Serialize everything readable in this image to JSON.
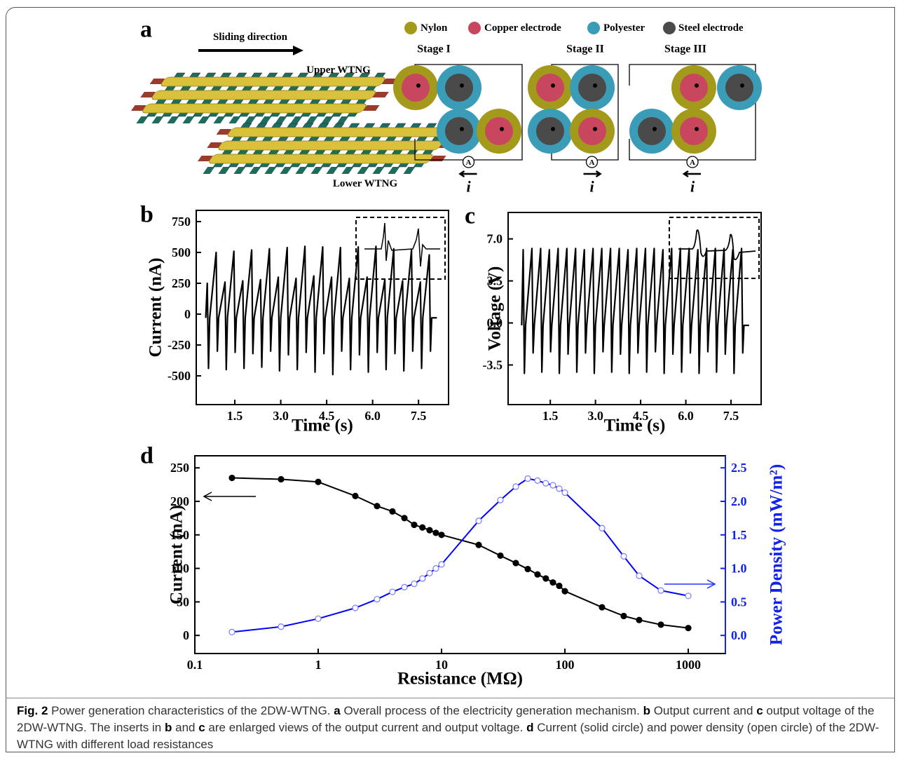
{
  "panel_a": {
    "label": "a",
    "sliding_direction": "Sliding direction",
    "upper_label": "Upper WTNG",
    "lower_label": "Lower WTNG",
    "legend": [
      "Nylon",
      "Copper electrode",
      "Polyester",
      "Steel electrode"
    ],
    "stages": [
      "Stage I",
      "Stage II",
      "Stage III"
    ],
    "ammeter": "A",
    "current_symbol": "i"
  },
  "chart_data": [
    {
      "type": "line",
      "label": "b",
      "y_label": "Current (nA)",
      "x_label": "Time (s)",
      "color": "#000000",
      "x": [
        0.55,
        0.6,
        0.64,
        0.68,
        0.89,
        0.93,
        0.97,
        1.18,
        1.22,
        1.26,
        1.47,
        1.51,
        1.55,
        1.76,
        1.8,
        1.84,
        2.05,
        2.09,
        2.13,
        2.34,
        2.38,
        2.42,
        2.63,
        2.67,
        2.71,
        2.92,
        2.96,
        3,
        3.21,
        3.25,
        3.29,
        3.5,
        3.54,
        3.58,
        3.79,
        3.83,
        3.87,
        4.08,
        4.12,
        4.16,
        4.37,
        4.41,
        4.45,
        4.66,
        4.7,
        4.74,
        4.95,
        4.99,
        5.03,
        5.24,
        5.28,
        5.32,
        5.53,
        5.57,
        5.61,
        5.82,
        5.86,
        5.9,
        6.11,
        6.15,
        6.19,
        6.4,
        6.44,
        6.48,
        6.69,
        6.73,
        6.77,
        6.98,
        7.02,
        7.06,
        7.27,
        7.31,
        7.35,
        7.56,
        7.6,
        7.64,
        7.85,
        7.89,
        7.93,
        8.1
      ],
      "values": [
        -30,
        250,
        -440,
        -30,
        500,
        -300,
        -30,
        260,
        -450,
        -30,
        510,
        -310,
        -30,
        270,
        -440,
        -30,
        520,
        -320,
        -30,
        280,
        -430,
        -30,
        530,
        -300,
        -30,
        300,
        -460,
        -30,
        540,
        -330,
        -30,
        290,
        -450,
        -30,
        550,
        -310,
        -30,
        310,
        -470,
        -30,
        545,
        -320,
        -30,
        300,
        -490,
        -30,
        540,
        -300,
        -30,
        290,
        -450,
        -30,
        545,
        -330,
        -30,
        300,
        -470,
        -30,
        550,
        -310,
        -30,
        280,
        -450,
        -30,
        530,
        -320,
        -30,
        270,
        -460,
        -30,
        520,
        -300,
        -30,
        260,
        -440,
        -30,
        480,
        -300,
        -30,
        -30
      ],
      "xlim": [
        0.24,
        8.48
      ],
      "ylim": [
        -733,
        841
      ],
      "xticks": [
        1.5,
        {
          "value": 3,
          "label": "3.0"
        },
        4.5,
        {
          "value": 6,
          "label": "6.0"
        },
        7.5
      ],
      "yticks": [
        -500,
        -250,
        0,
        250,
        500,
        750
      ],
      "grid": false
    },
    {
      "type": "line",
      "label": "c",
      "y_label": "Voltage (V)",
      "x_label": "Time (s)",
      "color": "#000000",
      "x": [
        0.55,
        0.6,
        0.64,
        0.68,
        0.89,
        0.93,
        0.97,
        1.18,
        1.22,
        1.26,
        1.47,
        1.51,
        1.55,
        1.76,
        1.8,
        1.84,
        2.05,
        2.09,
        2.13,
        2.34,
        2.38,
        2.42,
        2.63,
        2.67,
        2.71,
        2.92,
        2.96,
        3,
        3.21,
        3.25,
        3.29,
        3.5,
        3.54,
        3.58,
        3.79,
        3.83,
        3.87,
        4.08,
        4.12,
        4.16,
        4.37,
        4.41,
        4.45,
        4.66,
        4.7,
        4.74,
        4.95,
        4.99,
        5.03,
        5.24,
        5.28,
        5.32,
        5.53,
        5.57,
        5.61,
        5.82,
        5.86,
        5.9,
        6.11,
        6.15,
        6.19,
        6.4,
        6.44,
        6.48,
        6.69,
        6.73,
        6.77,
        6.98,
        7.02,
        7.06,
        7.27,
        7.31,
        7.35,
        7.56,
        7.6,
        7.64,
        7.85,
        7.89,
        7.93,
        8.1
      ],
      "values": [
        -0.2,
        6.1,
        -4.2,
        -0.2,
        6.2,
        -2.5,
        -0.2,
        6.2,
        -4.1,
        -0.2,
        6.1,
        -2.4,
        -0.2,
        6.2,
        -4.2,
        -0.2,
        6.2,
        -2.6,
        -0.2,
        6.2,
        -4.1,
        -0.2,
        6.1,
        -2.5,
        -0.2,
        6.2,
        -4.2,
        -0.2,
        6.2,
        -2.4,
        -0.2,
        6.2,
        -4.1,
        -0.2,
        6.2,
        -2.6,
        -0.2,
        6.1,
        -4.2,
        -0.2,
        6.2,
        -2.5,
        -0.2,
        6.2,
        -4.1,
        -0.2,
        6.2,
        -2.4,
        -0.2,
        6.1,
        -4.2,
        -0.2,
        6.2,
        -2.6,
        -0.2,
        6.2,
        -4.1,
        -0.2,
        6.2,
        -2.5,
        -0.2,
        6.1,
        -4.2,
        -0.2,
        6.2,
        -2.4,
        -0.2,
        6.2,
        -4.1,
        -0.2,
        6.2,
        -2.6,
        -0.2,
        6.1,
        -4.2,
        -0.2,
        6.2,
        -2.5,
        -0.2,
        -0.2
      ],
      "xlim": [
        0.1,
        8.5
      ],
      "ylim": [
        -6.8,
        9.2
      ],
      "xticks": [
        1.5,
        {
          "value": 3,
          "label": "3.0"
        },
        4.5,
        {
          "value": 6,
          "label": "6.0"
        },
        7.5
      ],
      "yticks": [
        -3.5,
        {
          "value": 0,
          "label": "0.0"
        },
        3.5,
        {
          "value": 7,
          "label": "7.0"
        }
      ],
      "grid": false
    },
    {
      "type": "line",
      "label": "d",
      "y_label": "Current (nA)",
      "y2_label": "Power Density (mW/m²)",
      "x_label": "Resistance (MΩ)",
      "xscale": "log",
      "x": [
        0.2,
        0.5,
        1,
        2,
        3,
        4,
        5,
        6,
        7,
        8,
        9,
        10,
        20,
        30,
        40,
        50,
        60,
        70,
        80,
        90,
        100,
        200,
        300,
        400,
        600,
        1000
      ],
      "series": [
        {
          "color": "#000000",
          "marker": "filled",
          "values": [
            235,
            233,
            229,
            208,
            193,
            185,
            175,
            165,
            161,
            157,
            153,
            150,
            135,
            119,
            108,
            99,
            91,
            85,
            79,
            74,
            66,
            42,
            29,
            23,
            16,
            11
          ]
        },
        {
          "color": "#0000ff",
          "marker": "open",
          "axis": "y2",
          "values": [
            0.05,
            0.13,
            0.25,
            0.41,
            0.54,
            0.65,
            0.72,
            0.77,
            0.85,
            0.93,
            1.0,
            1.06,
            1.71,
            2.02,
            2.22,
            2.34,
            2.31,
            2.27,
            2.24,
            2.19,
            2.13,
            1.6,
            1.18,
            0.89,
            0.67,
            0.59
          ]
        }
      ],
      "xlim": [
        0.1,
        2000
      ],
      "ylim": [
        -27,
        268
      ],
      "y2lim": [
        -0.27,
        2.68
      ],
      "xticks": [
        0.1,
        1,
        10,
        100,
        1000
      ],
      "yticks": [
        0,
        50,
        100,
        150,
        200,
        250
      ],
      "y2ticks": [
        {
          "value": 0,
          "label": "0.0"
        },
        0.5,
        {
          "value": 1,
          "label": "1.0"
        },
        1.5,
        {
          "value": 2,
          "label": "2.0"
        },
        2.5
      ],
      "grid": false
    }
  ],
  "caption": {
    "label": "Fig. 2",
    "segments": [
      "Power generation characteristics of the 2DW-WTNG.",
      "a",
      "Overall process of the electricity generation mechanism.",
      "b",
      "Output current and",
      "c",
      "output voltage of the 2DW-WTNG. The inserts in",
      "b",
      "and",
      "c",
      "are enlarged views of the output current and output voltage.",
      "d",
      "Current (solid circle) and power density (open circle) of the 2DW-WTNG with different load resistances"
    ]
  }
}
